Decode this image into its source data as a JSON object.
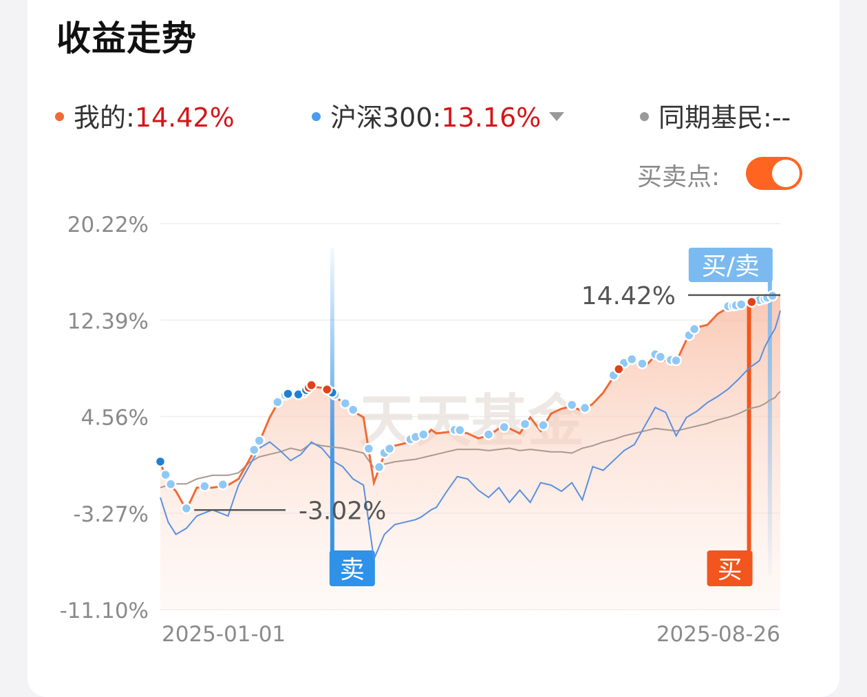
{
  "header": {
    "title": "收益走势"
  },
  "legend": {
    "mine": {
      "label": "我的:",
      "value": "14.42%",
      "color": "#f06a35"
    },
    "index": {
      "label": "沪深300:",
      "value": "13.16%",
      "color": "#4a9df0"
    },
    "peers": {
      "label": "同期基民:",
      "value": "--",
      "color": "#999999"
    }
  },
  "controls": {
    "buy_sell_label": "买卖点:",
    "buy_sell_enabled": true
  },
  "watermark": "天天基金",
  "chart_data": {
    "type": "line",
    "x_start": "2025-01-01",
    "x_end": "2025-08-26",
    "x_tick_labels": [
      "2025-01-01",
      "2025-08-26"
    ],
    "y_tick_labels": [
      "20.22%",
      "12.39%",
      "4.56%",
      "-3.27%",
      "-11.10%"
    ],
    "ylim": [
      -11.1,
      20.22
    ],
    "grid": true,
    "series": [
      {
        "name": "我的",
        "color": "#f06a35",
        "area": true,
        "x": [
          0,
          3,
          6,
          10,
          14,
          20,
          26,
          30,
          34,
          38,
          42,
          46,
          50,
          54,
          58,
          62,
          66,
          70,
          74,
          78,
          82,
          86,
          90,
          94,
          98,
          100,
          102,
          104,
          106,
          110,
          114,
          118,
          122,
          126,
          130,
          134,
          138,
          142,
          146,
          150,
          154,
          158,
          162,
          166,
          170,
          174,
          178,
          182,
          186,
          190,
          194,
          198,
          202,
          206,
          210,
          214,
          218,
          222,
          226,
          230,
          232,
          234,
          236,
          237,
          238
        ],
        "y": [
          0.8,
          -0.8,
          -1.5,
          -3.0,
          -1.2,
          -1.2,
          -1.0,
          -0.5,
          1.0,
          2.5,
          4.5,
          6.0,
          6.4,
          6.2,
          7.0,
          6.9,
          6.4,
          5.7,
          5.0,
          4.5,
          -0.8,
          1.5,
          2.2,
          2.4,
          2.8,
          3.0,
          3.0,
          3.5,
          3.2,
          3.3,
          3.4,
          3.2,
          2.8,
          3.0,
          3.6,
          3.6,
          3.2,
          4.5,
          3.4,
          4.8,
          5.2,
          5.4,
          5.0,
          5.6,
          6.5,
          7.8,
          8.8,
          9.2,
          8.6,
          9.5,
          9.1,
          9.0,
          10.8,
          11.8,
          12.0,
          12.9,
          13.4,
          13.5,
          13.7,
          13.9,
          14.0,
          14.2,
          14.3,
          14.42,
          14.42
        ]
      },
      {
        "name": "沪深300",
        "color": "#5a8fe0",
        "area": false,
        "x": [
          0,
          3,
          6,
          10,
          14,
          20,
          26,
          30,
          34,
          38,
          42,
          46,
          50,
          54,
          58,
          62,
          66,
          70,
          74,
          78,
          82,
          86,
          90,
          94,
          98,
          100,
          102,
          104,
          106,
          110,
          114,
          118,
          122,
          126,
          130,
          134,
          138,
          142,
          146,
          150,
          154,
          158,
          162,
          166,
          170,
          174,
          178,
          182,
          186,
          190,
          194,
          198,
          202,
          206,
          210,
          214,
          218,
          222,
          226,
          230,
          232,
          234,
          236,
          237,
          238
        ],
        "y": [
          -2.0,
          -4.0,
          -5.0,
          -4.5,
          -3.5,
          -3.0,
          -3.5,
          -1.0,
          0.5,
          2.0,
          2.5,
          1.8,
          1.0,
          1.5,
          2.5,
          2.0,
          1.0,
          0.5,
          -0.5,
          -1.0,
          -7.0,
          -5.0,
          -4.2,
          -4.0,
          -3.8,
          -3.6,
          -3.3,
          -3.0,
          -2.8,
          -1.5,
          -0.3,
          -0.5,
          -1.4,
          -2.0,
          -1.2,
          -2.4,
          -1.4,
          -2.4,
          -0.8,
          -1.0,
          -1.5,
          -0.8,
          -2.2,
          0.5,
          0.2,
          1.0,
          1.8,
          2.3,
          3.8,
          5.3,
          4.9,
          3.0,
          4.5,
          5.0,
          5.7,
          6.2,
          6.8,
          7.6,
          8.5,
          9.1,
          10.2,
          11.0,
          11.7,
          12.4,
          13.16
        ]
      },
      {
        "name": "同期基民",
        "color": "#a89890",
        "area": false,
        "x": [
          0,
          3,
          6,
          10,
          14,
          20,
          26,
          30,
          34,
          38,
          42,
          46,
          50,
          54,
          58,
          62,
          66,
          70,
          74,
          78,
          82,
          86,
          90,
          94,
          98,
          100,
          102,
          104,
          106,
          110,
          114,
          118,
          122,
          126,
          130,
          134,
          138,
          142,
          146,
          150,
          154,
          158,
          162,
          166,
          170,
          174,
          178,
          182,
          186,
          190,
          194,
          198,
          202,
          206,
          210,
          214,
          218,
          222,
          226,
          230,
          232,
          234,
          236,
          237,
          238
        ],
        "y": [
          -1.2,
          -1.0,
          -0.9,
          -0.9,
          -0.5,
          -0.2,
          -0.2,
          0.0,
          0.8,
          1.3,
          1.5,
          1.7,
          2.0,
          1.8,
          2.4,
          2.2,
          2.1,
          2.0,
          1.8,
          1.6,
          0.4,
          0.7,
          0.9,
          1.0,
          1.1,
          1.2,
          1.3,
          1.4,
          1.5,
          1.7,
          1.9,
          1.9,
          1.9,
          1.8,
          1.9,
          2.0,
          1.8,
          1.9,
          1.8,
          1.7,
          1.7,
          1.6,
          2.0,
          2.2,
          2.5,
          2.7,
          3.0,
          3.2,
          3.4,
          3.6,
          3.5,
          3.4,
          3.6,
          3.8,
          4.0,
          4.3,
          4.5,
          4.8,
          5.2,
          5.4,
          5.6,
          5.9,
          6.1,
          6.4,
          6.6
        ]
      }
    ],
    "annotations": [
      {
        "x": 13,
        "y": -3.02,
        "text": "-3.02%",
        "type": "min"
      },
      {
        "x": 238,
        "y": 14.42,
        "text": "14.42%",
        "type": "max"
      }
    ],
    "trade_markers": [
      {
        "x": 66,
        "label": "卖",
        "color": "#2f91e8"
      },
      {
        "x": 226,
        "label": "买",
        "color": "#f2561e"
      },
      {
        "x": 234,
        "label": "买/卖",
        "color": "#7bbaf0"
      }
    ],
    "trade_dots": {
      "light": [
        2,
        4,
        10,
        17,
        24,
        36,
        38,
        45,
        48,
        49,
        55,
        67,
        71,
        74,
        80,
        84,
        86,
        88,
        96,
        98,
        101,
        113,
        115,
        126,
        132,
        140,
        147,
        158,
        163,
        174,
        178,
        181,
        185,
        190,
        192,
        196,
        198,
        203,
        205,
        218,
        220,
        221,
        223,
        230,
        232,
        233,
        235
      ],
      "blue": [
        0,
        49,
        53,
        56,
        66
      ],
      "orange": [
        57,
        58,
        64,
        176,
        227
      ]
    }
  }
}
